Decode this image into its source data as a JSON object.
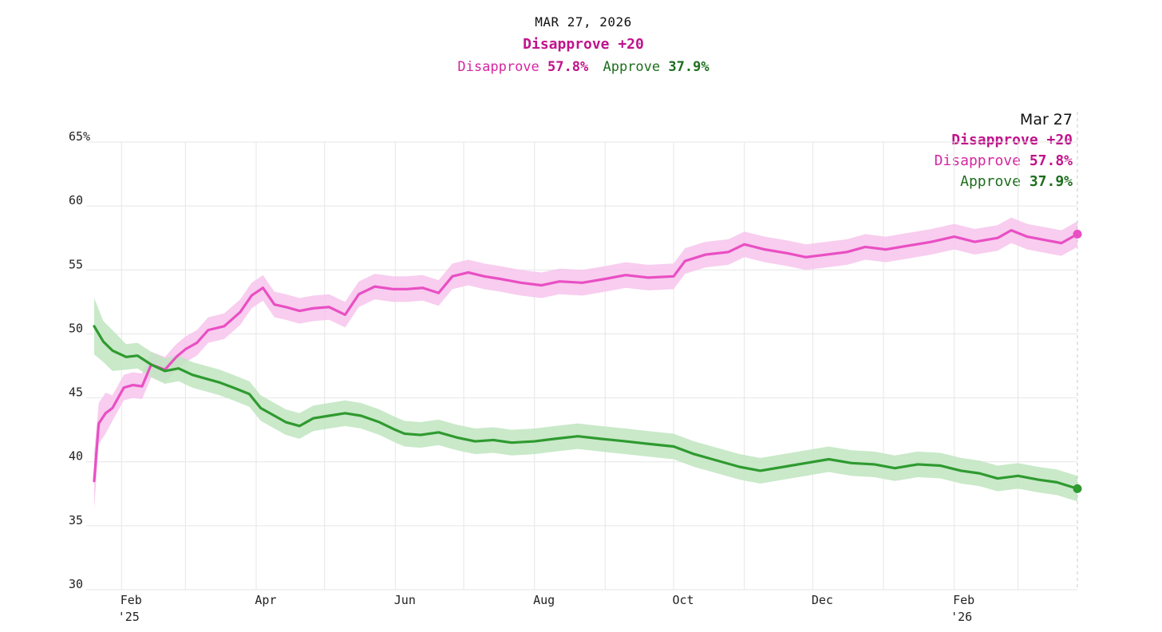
{
  "header": {
    "date": "MAR 27, 2026",
    "margin": "Disapprove +20",
    "disapprove_label": "Disapprove",
    "disapprove_value": "57.8%",
    "approve_label": "Approve",
    "approve_value": "37.9%"
  },
  "tooltip": {
    "date": "Mar 27",
    "margin": "Disapprove +20",
    "disapprove_label": "Disapprove",
    "disapprove_value": "57.8%",
    "approve_label": "Approve",
    "approve_value": "37.9%"
  },
  "colors": {
    "disapprove": "#e94fc3",
    "disapprove_band": "#f7c4ec",
    "approve": "#2f9a2f",
    "approve_band": "#bfe5bf",
    "grid": "#e6e6e6"
  },
  "chart_data": {
    "type": "line",
    "title": "",
    "xlabel": "",
    "ylabel": "",
    "ylim": [
      30,
      65
    ],
    "xlim": [
      "2025-01-20",
      "2026-03-27"
    ],
    "y_ticks": [
      "65%",
      "60",
      "55",
      "50",
      "45",
      "40",
      "35",
      "30"
    ],
    "x_ticks": [
      {
        "label": "Feb",
        "sub": "'25",
        "date": "2025-02-01"
      },
      {
        "label": "Apr",
        "sub": "",
        "date": "2025-04-01"
      },
      {
        "label": "Jun",
        "sub": "",
        "date": "2025-06-01"
      },
      {
        "label": "Aug",
        "sub": "",
        "date": "2025-08-01"
      },
      {
        "label": "Oct",
        "sub": "",
        "date": "2025-10-01"
      },
      {
        "label": "Dec",
        "sub": "",
        "date": "2025-12-01"
      },
      {
        "label": "Feb",
        "sub": "'26",
        "date": "2026-02-01"
      }
    ],
    "grid": true,
    "legend": "none",
    "series": [
      {
        "name": "Disapprove",
        "x": [
          "2025-01-20",
          "2025-01-22",
          "2025-01-25",
          "2025-01-28",
          "2025-02-02",
          "2025-02-06",
          "2025-02-10",
          "2025-02-14",
          "2025-02-20",
          "2025-02-25",
          "2025-03-01",
          "2025-03-06",
          "2025-03-11",
          "2025-03-18",
          "2025-03-25",
          "2025-03-30",
          "2025-04-04",
          "2025-04-09",
          "2025-04-14",
          "2025-04-20",
          "2025-04-26",
          "2025-05-03",
          "2025-05-10",
          "2025-05-16",
          "2025-05-23",
          "2025-05-31",
          "2025-06-06",
          "2025-06-13",
          "2025-06-20",
          "2025-06-26",
          "2025-07-03",
          "2025-07-10",
          "2025-07-17",
          "2025-07-26",
          "2025-08-04",
          "2025-08-12",
          "2025-08-22",
          "2025-09-01",
          "2025-09-10",
          "2025-09-20",
          "2025-10-01",
          "2025-10-06",
          "2025-10-15",
          "2025-10-25",
          "2025-11-01",
          "2025-11-10",
          "2025-11-20",
          "2025-11-28",
          "2025-12-07",
          "2025-12-16",
          "2025-12-24",
          "2026-01-02",
          "2026-01-12",
          "2026-01-22",
          "2026-02-01",
          "2026-02-10",
          "2026-02-20",
          "2026-02-26",
          "2026-03-05",
          "2026-03-14",
          "2026-03-20",
          "2026-03-27"
        ],
        "values": [
          38.5,
          43,
          43.8,
          44.2,
          45.8,
          46,
          45.9,
          47.6,
          47.2,
          48.2,
          48.8,
          49.3,
          50.3,
          50.6,
          51.7,
          53,
          53.6,
          52.3,
          52.1,
          51.8,
          52,
          52.1,
          51.5,
          53.1,
          53.7,
          53.5,
          53.5,
          53.6,
          53.2,
          54.5,
          54.8,
          54.5,
          54.3,
          54,
          53.8,
          54.1,
          54,
          54.3,
          54.6,
          54.4,
          54.5,
          55.7,
          56.2,
          56.4,
          57,
          56.6,
          56.3,
          56,
          56.2,
          56.4,
          56.8,
          56.6,
          56.9,
          57.2,
          57.6,
          57.2,
          57.5,
          58.1,
          57.6,
          57.3,
          57.1,
          57.8
        ]
      },
      {
        "name": "Approve",
        "x": [
          "2025-01-20",
          "2025-01-24",
          "2025-01-28",
          "2025-02-03",
          "2025-02-08",
          "2025-02-14",
          "2025-02-20",
          "2025-02-26",
          "2025-03-04",
          "2025-03-10",
          "2025-03-16",
          "2025-03-22",
          "2025-03-29",
          "2025-04-03",
          "2025-04-08",
          "2025-04-14",
          "2025-04-20",
          "2025-04-26",
          "2025-05-03",
          "2025-05-10",
          "2025-05-17",
          "2025-05-25",
          "2025-06-01",
          "2025-06-05",
          "2025-06-12",
          "2025-06-20",
          "2025-06-28",
          "2025-07-06",
          "2025-07-14",
          "2025-07-22",
          "2025-08-01",
          "2025-08-10",
          "2025-08-20",
          "2025-08-30",
          "2025-09-10",
          "2025-09-20",
          "2025-10-01",
          "2025-10-10",
          "2025-10-20",
          "2025-10-30",
          "2025-11-08",
          "2025-11-18",
          "2025-11-28",
          "2025-12-08",
          "2025-12-18",
          "2025-12-28",
          "2026-01-06",
          "2026-01-16",
          "2026-01-26",
          "2026-02-04",
          "2026-02-12",
          "2026-02-20",
          "2026-03-01",
          "2026-03-10",
          "2026-03-18",
          "2026-03-27"
        ],
        "values": [
          50.6,
          49.4,
          48.7,
          48.2,
          48.3,
          47.6,
          47.1,
          47.3,
          46.8,
          46.5,
          46.2,
          45.8,
          45.3,
          44.2,
          43.7,
          43.1,
          42.8,
          43.4,
          43.6,
          43.8,
          43.6,
          43.1,
          42.5,
          42.2,
          42.1,
          42.3,
          41.9,
          41.6,
          41.7,
          41.5,
          41.6,
          41.8,
          42,
          41.8,
          41.6,
          41.4,
          41.2,
          40.6,
          40.1,
          39.6,
          39.3,
          39.6,
          39.9,
          40.2,
          39.9,
          39.8,
          39.5,
          39.8,
          39.7,
          39.3,
          39.1,
          38.7,
          38.9,
          38.6,
          38.4,
          37.9
        ]
      }
    ]
  }
}
